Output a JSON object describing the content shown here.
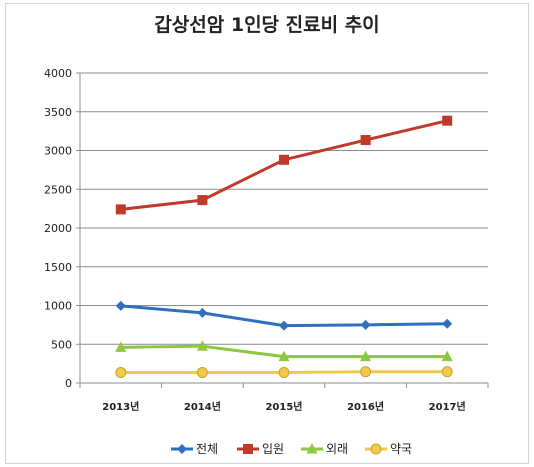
{
  "chart_data": {
    "type": "line",
    "title": "갑상선암 1인당 진료비 추이",
    "categories": [
      "2013년",
      "2014년",
      "2015년",
      "2016년",
      "2017년"
    ],
    "ylim": [
      0,
      4000
    ],
    "yticks": [
      0,
      500,
      1000,
      1500,
      2000,
      2500,
      3000,
      3500,
      4000
    ],
    "grid": true,
    "legend_position": "bottom",
    "series": [
      {
        "name": "전체",
        "values": [
          995,
          905,
          740,
          750,
          765
        ],
        "color": "#2E6FC0",
        "marker": "diamond"
      },
      {
        "name": "입원",
        "values": [
          2240,
          2360,
          2880,
          3135,
          3385
        ],
        "color": "#C0392B",
        "marker": "square"
      },
      {
        "name": "외래",
        "values": [
          460,
          475,
          340,
          340,
          340
        ],
        "color": "#8DC63F",
        "marker": "triangle"
      },
      {
        "name": "약국",
        "values": [
          135,
          135,
          135,
          145,
          145
        ],
        "color": "#F2C94C",
        "marker": "circle"
      }
    ]
  }
}
